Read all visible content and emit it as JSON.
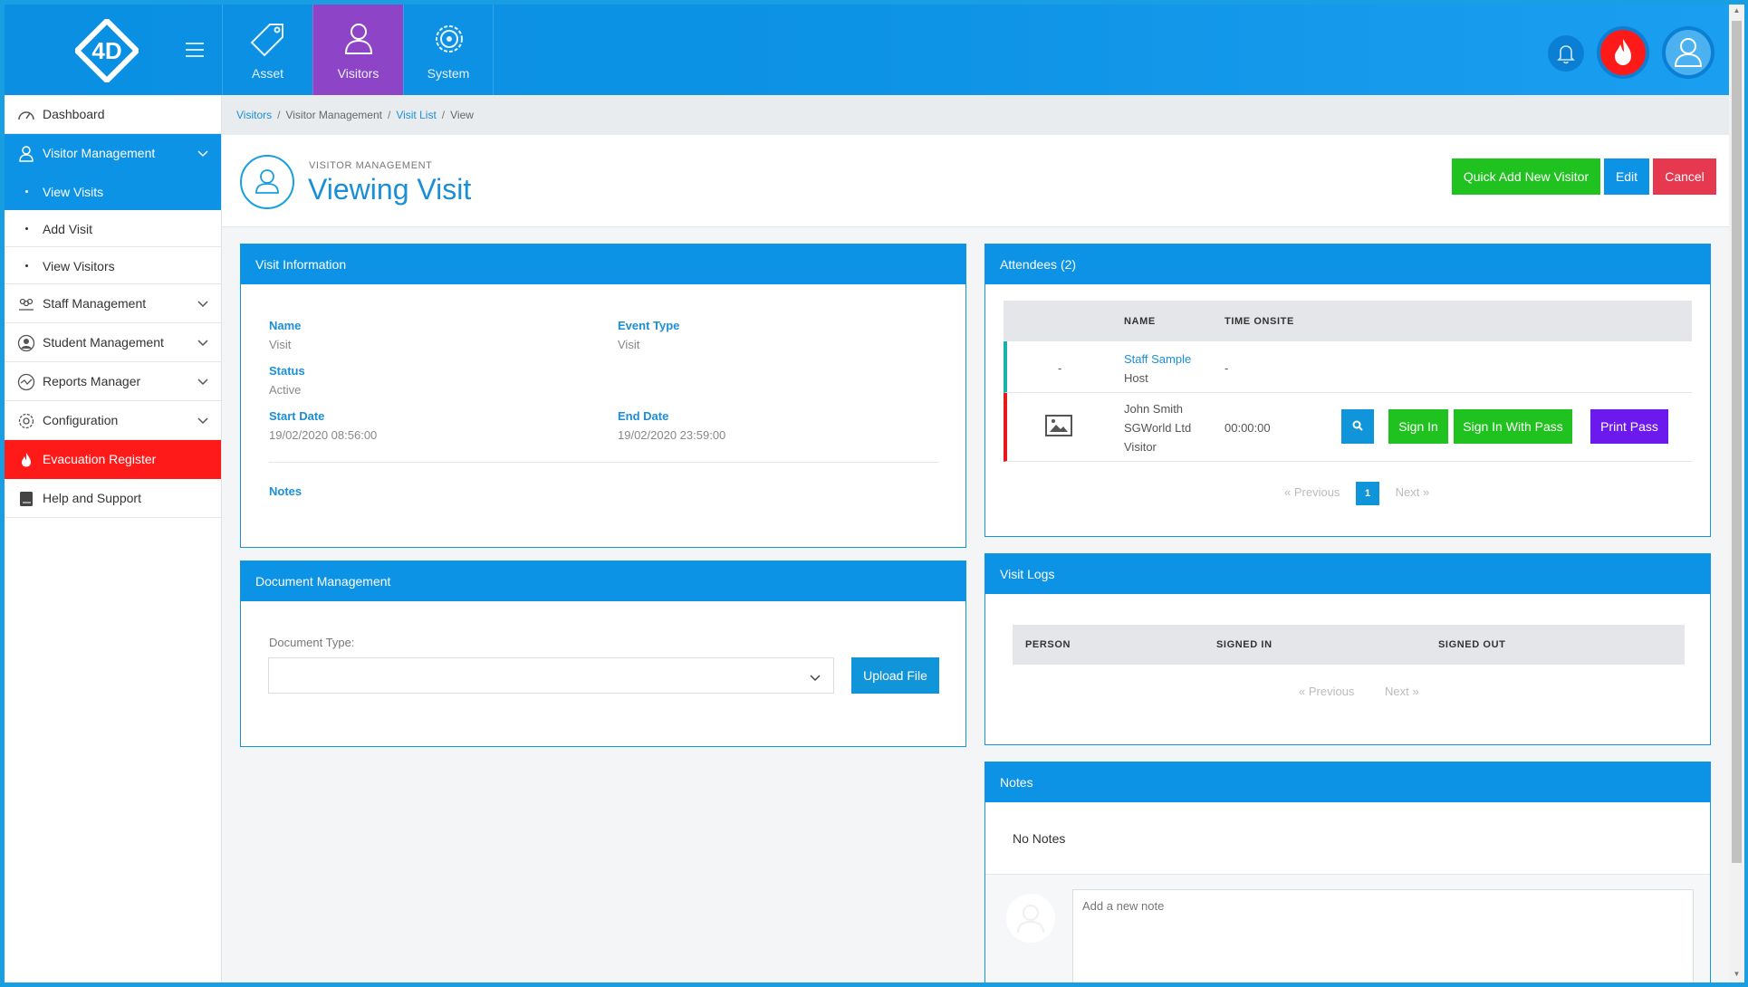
{
  "colors": {
    "brand": "#0d93e5",
    "active_module": "#8e44c6",
    "evac": "#ff1a1a",
    "green": "#20c21f",
    "purple": "#6c19ee",
    "danger": "#e63950"
  },
  "logo": {
    "text": "4D"
  },
  "modules": [
    {
      "label": "Asset",
      "icon": "tag-icon"
    },
    {
      "label": "Visitors",
      "icon": "user-icon"
    },
    {
      "label": "System",
      "icon": "gear-icon"
    }
  ],
  "sidebar": {
    "dashboard": "Dashboard",
    "visitor_management": "Visitor Management",
    "view_visits": "View Visits",
    "add_visit": "Add Visit",
    "view_visitors": "View Visitors",
    "staff_management": "Staff Management",
    "student_management": "Student Management",
    "reports_manager": "Reports Manager",
    "configuration": "Configuration",
    "evacuation_register": "Evacuation Register",
    "help_support": "Help and Support"
  },
  "breadcrumb": {
    "visitors": "Visitors",
    "visitor_management": "Visitor Management",
    "visit_list": "Visit List",
    "view": "View",
    "sep": "/"
  },
  "page": {
    "kicker": "VISITOR MANAGEMENT",
    "title": "Viewing Visit",
    "quick_add": "Quick Add New Visitor",
    "edit": "Edit",
    "cancel": "Cancel"
  },
  "visit_info": {
    "heading": "Visit Information",
    "name_label": "Name",
    "name": "Visit",
    "event_type_label": "Event Type",
    "event_type": "Visit",
    "status_label": "Status",
    "status": "Active",
    "start_label": "Start Date",
    "start": "19/02/2020 08:56:00",
    "end_label": "End Date",
    "end": "19/02/2020 23:59:00",
    "notes_label": "Notes"
  },
  "documents": {
    "heading": "Document Management",
    "type_label": "Document Type:",
    "type_value": "",
    "upload": "Upload File"
  },
  "attendees": {
    "heading": "Attendees (2)",
    "col_name": "NAME",
    "col_time": "TIME ONSITE",
    "rows": [
      {
        "photo": "-",
        "name": "Staff Sample",
        "role": "Host",
        "time": "-"
      },
      {
        "name": "John Smith",
        "company": "SGWorld Ltd",
        "role": "Visitor",
        "time": "00:00:00",
        "sign_in": "Sign In",
        "sign_in_pass": "Sign In With Pass",
        "print_pass": "Print Pass"
      }
    ],
    "prev": "« Previous",
    "page": "1",
    "next": "Next »"
  },
  "visit_logs": {
    "heading": "Visit Logs",
    "col_person": "PERSON",
    "col_in": "SIGNED IN",
    "col_out": "SIGNED OUT",
    "prev": "« Previous",
    "next": "Next »"
  },
  "notes": {
    "heading": "Notes",
    "empty": "No Notes",
    "placeholder": "Add a new note"
  }
}
